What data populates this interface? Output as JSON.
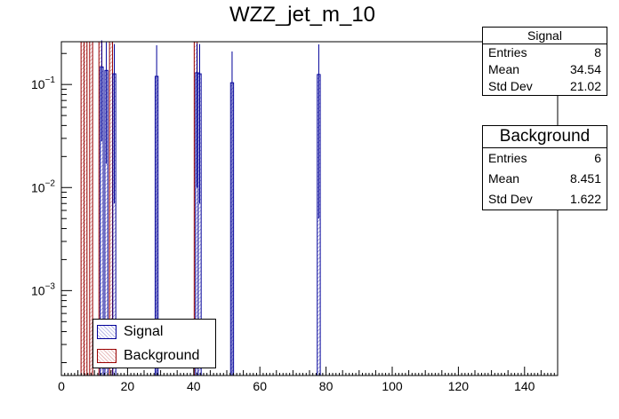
{
  "chart_data": {
    "type": "bar",
    "title": "WZZ_jet_m_10",
    "xlabel": "",
    "ylabel": "",
    "xlim": [
      0,
      150
    ],
    "ylim": [
      0.00015,
      0.26
    ],
    "yscale": "log",
    "x_ticks": [
      0,
      20,
      40,
      60,
      80,
      100,
      120,
      140
    ],
    "y_ticks": [
      {
        "value": 0.1,
        "base": "10",
        "exp": "−1"
      },
      {
        "value": 0.01,
        "base": "10",
        "exp": "−2"
      },
      {
        "value": 0.001,
        "base": "10",
        "exp": "−3"
      }
    ],
    "series": [
      {
        "name": "Signal",
        "color": "#000099",
        "bars": [
          {
            "x": 12.2,
            "y": 0.148,
            "err": 0.12
          },
          {
            "x": 13.6,
            "y": 0.137,
            "err": 0.12
          },
          {
            "x": 16.0,
            "y": 0.127,
            "err": 0.12
          },
          {
            "x": 28.8,
            "y": 0.12,
            "err": 0.12
          },
          {
            "x": 41.0,
            "y": 0.13,
            "err": 0.12
          },
          {
            "x": 41.8,
            "y": 0.127,
            "err": 0.12
          },
          {
            "x": 51.6,
            "y": 0.104,
            "err": 0.105
          },
          {
            "x": 77.8,
            "y": 0.125,
            "err": 0.12
          }
        ]
      },
      {
        "name": "Background",
        "color": "#990000",
        "bars": [
          {
            "x": 6.4,
            "y": 0.26,
            "err": 0
          },
          {
            "x": 7.3,
            "y": 0.26,
            "err": 0
          },
          {
            "x": 9.0,
            "y": 0.26,
            "err": 0
          },
          {
            "x": 11.8,
            "y": 0.26,
            "err": 0
          },
          {
            "x": 15.0,
            "y": 0.26,
            "err": 0
          },
          {
            "x": 40.6,
            "y": 0.26,
            "err": 0
          }
        ]
      }
    ],
    "legend": {
      "position": "bottom-left",
      "entries": [
        "Signal",
        "Background"
      ]
    }
  },
  "stats": {
    "signal": {
      "title": "Signal",
      "entries_label": "Entries",
      "entries": "8",
      "mean_label": "Mean",
      "mean": "34.54",
      "std_label": "Std Dev",
      "std": "21.02"
    },
    "background": {
      "title": "Background",
      "entries_label": "Entries",
      "entries": "6",
      "mean_label": "Mean",
      "mean": "8.451",
      "std_label": "Std Dev",
      "std": "1.622"
    }
  },
  "colors": {
    "signal": "#000099",
    "background": "#990000",
    "axis": "#000000"
  }
}
